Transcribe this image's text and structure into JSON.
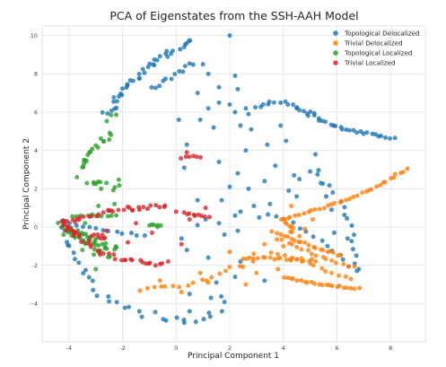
{
  "chart_data": {
    "type": "scatter",
    "title": "PCA of Eigenstates from the SSH-AAH Model",
    "xlabel": "Principal Component 1",
    "ylabel": "Principal Component 2",
    "xlim": [
      -5,
      9.3
    ],
    "ylim": [
      -6.0,
      10.5
    ],
    "xticks": [
      -4,
      -2,
      0,
      2,
      4,
      6,
      8
    ],
    "yticks": [
      -4,
      -2,
      0,
      2,
      4,
      6,
      8,
      10
    ],
    "grid": true,
    "legend_position": "top-right",
    "series": [
      {
        "name": "Topological Delocalized",
        "color": "#1f77b4"
      },
      {
        "name": "Trivial Delocalized",
        "color": "#ff7f0e"
      },
      {
        "name": "Topological Localized",
        "color": "#2ca02c"
      },
      {
        "name": "Trivial Localized",
        "color": "#d62728"
      }
    ],
    "curves": {
      "Topological Delocalized": [
        {
          "path": [
            [
              -2.6,
              5.9
            ],
            [
              -2.2,
              6.7
            ],
            [
              -1.5,
              7.8
            ],
            [
              -0.9,
              8.5
            ],
            [
              -0.3,
              9.1
            ],
            [
              0.3,
              9.5
            ],
            [
              0.6,
              9.7
            ]
          ],
          "n": 40,
          "jitter": 0.15
        },
        {
          "path": [
            [
              -0.8,
              7.2
            ],
            [
              -0.2,
              7.8
            ],
            [
              0.2,
              8.2
            ],
            [
              0.6,
              8.6
            ]
          ],
          "n": 12,
          "jitter": 0.12
        },
        {
          "path": [
            [
              -4.3,
              0.2
            ],
            [
              -3.6,
              -2.0
            ],
            [
              -2.8,
              -3.5
            ],
            [
              -2.0,
              -4.2
            ],
            [
              -1.0,
              -4.6
            ],
            [
              0.0,
              -4.8
            ],
            [
              1.0,
              -5.0
            ],
            [
              1.5,
              -4.4
            ],
            [
              1.8,
              -3.8
            ]
          ],
          "n": 35,
          "jitter": 0.18
        },
        {
          "path": [
            [
              3.0,
              6.2
            ],
            [
              3.5,
              6.5
            ],
            [
              4.0,
              6.5
            ],
            [
              4.5,
              6.3
            ],
            [
              5.0,
              5.8
            ]
          ],
          "n": 16,
          "jitter": 0.08
        },
        {
          "path": [
            [
              5.0,
              6.0
            ],
            [
              5.5,
              5.5
            ],
            [
              6.2,
              5.1
            ],
            [
              7.0,
              4.9
            ],
            [
              7.6,
              4.8
            ],
            [
              8.1,
              4.6
            ]
          ],
          "n": 26,
          "jitter": 0.07
        },
        {
          "path": [
            [
              5.2,
              3.0
            ],
            [
              5.8,
              2.0
            ],
            [
              6.2,
              1.0
            ],
            [
              6.5,
              0.0
            ],
            [
              6.6,
              -1.0
            ],
            [
              6.7,
              -2.2
            ]
          ],
          "n": 16,
          "jitter": 0.12
        },
        {
          "path": [
            [
              -4.0,
              0.2
            ],
            [
              -3.0,
              -0.1
            ],
            [
              -2.0,
              -0.3
            ],
            [
              -1.2,
              -0.45
            ]
          ],
          "n": 12,
          "jitter": 0.06
        },
        {
          "path": [
            [
              3.5,
              0.7
            ],
            [
              4.5,
              0.1
            ],
            [
              5.5,
              -0.8
            ],
            [
              6.2,
              -1.6
            ],
            [
              6.7,
              -2.3
            ]
          ],
          "n": 14,
          "jitter": 0.08
        }
      ],
      "Trivial Delocalized": [
        {
          "path": [
            [
              4.0,
              0.4
            ],
            [
              5.5,
              1.0
            ],
            [
              6.7,
              1.6
            ],
            [
              7.6,
              2.2
            ],
            [
              8.2,
              2.7
            ],
            [
              8.6,
              3.0
            ]
          ],
          "n": 34,
          "jitter": 0.06
        },
        {
          "path": [
            [
              3.6,
              -0.2
            ],
            [
              4.5,
              -0.7
            ],
            [
              5.5,
              -1.2
            ],
            [
              6.2,
              -1.5
            ]
          ],
          "n": 20,
          "jitter": 0.06
        },
        {
          "path": [
            [
              3.8,
              -0.6
            ],
            [
              4.8,
              -1.2
            ],
            [
              5.8,
              -1.8
            ],
            [
              6.6,
              -2.1
            ]
          ],
          "n": 16,
          "jitter": 0.06
        },
        {
          "path": [
            [
              2.5,
              -1.6
            ],
            [
              3.5,
              -1.65
            ],
            [
              4.5,
              -1.7
            ],
            [
              5.2,
              -1.75
            ]
          ],
          "n": 20,
          "jitter": 0.07
        },
        {
          "path": [
            [
              4.0,
              -2.6
            ],
            [
              5.0,
              -2.9
            ],
            [
              6.0,
              -3.1
            ],
            [
              6.8,
              -3.2
            ]
          ],
          "n": 22,
          "jitter": 0.05
        },
        {
          "path": [
            [
              3.6,
              -1.3
            ],
            [
              4.8,
              -1.8
            ],
            [
              5.8,
              -2.4
            ],
            [
              6.5,
              -2.7
            ]
          ],
          "n": 14,
          "jitter": 0.06
        },
        {
          "path": [
            [
              -1.4,
              -3.3
            ],
            [
              -0.4,
              -3.1
            ],
            [
              0.6,
              -3.0
            ],
            [
              1.4,
              -2.6
            ],
            [
              2.0,
              -2.2
            ],
            [
              2.8,
              -1.9
            ]
          ],
          "n": 18,
          "jitter": 0.1
        },
        {
          "path": [
            [
              4.0,
              0.5
            ],
            [
              4.2,
              0.0
            ],
            [
              4.5,
              -0.4
            ]
          ],
          "n": 10,
          "jitter": 0.12
        }
      ],
      "Topological Localized": [
        {
          "path": [
            [
              -4.3,
              0.1
            ],
            [
              -3.5,
              -0.5
            ],
            [
              -2.8,
              -0.9
            ],
            [
              -2.3,
              -1.2
            ]
          ],
          "n": 30,
          "jitter": 0.2
        },
        {
          "path": [
            [
              -4.1,
              0.0
            ],
            [
              -3.2,
              -1.0
            ],
            [
              -2.6,
              -1.6
            ]
          ],
          "n": 16,
          "jitter": 0.18
        },
        {
          "path": [
            [
              -3.9,
              0.6
            ],
            [
              -3.0,
              0.6
            ],
            [
              -2.2,
              0.6
            ]
          ],
          "n": 10,
          "jitter": 0.06
        },
        {
          "path": [
            [
              -3.6,
              3.0
            ],
            [
              -3.2,
              3.8
            ],
            [
              -2.8,
              4.4
            ],
            [
              -2.5,
              4.9
            ]
          ],
          "n": 18,
          "jitter": 0.14
        },
        {
          "path": [
            [
              -2.5,
              5.6
            ],
            [
              -2.3,
              5.9
            ]
          ],
          "n": 3,
          "jitter": 0.1
        },
        {
          "path": [
            [
              -3.2,
              2.2
            ],
            [
              -2.9,
              2.5
            ]
          ],
          "n": 6,
          "jitter": 0.15
        },
        {
          "path": [
            [
              -2.3,
              2.0
            ],
            [
              -2.1,
              2.4
            ]
          ],
          "n": 4,
          "jitter": 0.1
        },
        {
          "path": [
            [
              -1.0,
              0.1
            ],
            [
              -0.6,
              0.05
            ]
          ],
          "n": 5,
          "jitter": 0.04
        }
      ],
      "Trivial Localized": [
        {
          "path": [
            [
              -4.2,
              0.2
            ],
            [
              -3.2,
              0.6
            ],
            [
              -2.2,
              0.95
            ],
            [
              -1.2,
              1.0
            ],
            [
              -0.4,
              1.05
            ]
          ],
          "n": 32,
          "jitter": 0.12
        },
        {
          "path": [
            [
              -4.1,
              0.0
            ],
            [
              -3.0,
              -1.2
            ],
            [
              -2.0,
              -1.7
            ],
            [
              -1.0,
              -1.9
            ],
            [
              -0.5,
              -2.0
            ]
          ],
          "n": 32,
          "jitter": 0.12
        },
        {
          "path": [
            [
              -3.1,
              -0.4
            ],
            [
              -2.6,
              -0.6
            ]
          ],
          "n": 8,
          "jitter": 0.1
        },
        {
          "path": [
            [
              0.3,
              0.7
            ],
            [
              0.8,
              0.6
            ],
            [
              1.2,
              0.5
            ]
          ],
          "n": 9,
          "jitter": 0.06
        },
        {
          "path": [
            [
              0.2,
              3.6
            ],
            [
              0.6,
              3.7
            ],
            [
              0.9,
              3.6
            ]
          ],
          "n": 6,
          "jitter": 0.05
        },
        {
          "path": [
            [
              -4.3,
              0.3
            ],
            [
              -4.0,
              0.0
            ],
            [
              -3.8,
              -0.2
            ]
          ],
          "n": 8,
          "jitter": 0.1
        }
      ]
    },
    "points": {
      "Topological Delocalized": [
        [
          2.0,
          10.0
        ],
        [
          1.0,
          8.5
        ],
        [
          1.2,
          8.0
        ],
        [
          1.6,
          7.3
        ],
        [
          2.2,
          7.9
        ],
        [
          0.8,
          7.0
        ],
        [
          1.2,
          6.2
        ],
        [
          1.6,
          6.5
        ],
        [
          2.0,
          6.4
        ],
        [
          2.2,
          6.0
        ],
        [
          2.6,
          6.2
        ],
        [
          2.4,
          5.3
        ],
        [
          1.4,
          5.2
        ],
        [
          0.9,
          5.6
        ],
        [
          2.8,
          5.1
        ],
        [
          3.4,
          4.3
        ],
        [
          3.9,
          5.3
        ],
        [
          4.1,
          4.5
        ],
        [
          3.7,
          3.2
        ],
        [
          3.3,
          2.4
        ],
        [
          2.3,
          2.8
        ],
        [
          2.0,
          2.1
        ],
        [
          1.6,
          3.4
        ],
        [
          2.6,
          4.0
        ],
        [
          1.7,
          1.4
        ],
        [
          2.9,
          1.1
        ],
        [
          2.4,
          0.8
        ],
        [
          2.2,
          0.6
        ],
        [
          1.6,
          0.2
        ],
        [
          2.3,
          -0.2
        ],
        [
          3.1,
          0.5
        ],
        [
          5.0,
          2.9
        ],
        [
          4.2,
          1.9
        ],
        [
          5.4,
          2.3
        ],
        [
          5.6,
          1.6
        ],
        [
          5.8,
          0.9
        ],
        [
          4.6,
          2.5
        ],
        [
          2.3,
          7.2
        ],
        [
          2.7,
          5.9
        ],
        [
          0.2,
          -0.6
        ],
        [
          0.4,
          -1.2
        ],
        [
          0.8,
          0.1
        ],
        [
          1.1,
          0.4
        ],
        [
          0.5,
          -4.4
        ],
        [
          1.3,
          -3.7
        ],
        [
          2.2,
          -2.6
        ],
        [
          2.4,
          -1.8
        ],
        [
          3.3,
          -2.8
        ],
        [
          1.5,
          -2.9
        ],
        [
          0.8,
          1.4
        ],
        [
          0.3,
          3.1
        ],
        [
          1.8,
          -0.4
        ],
        [
          2.7,
          2.0
        ],
        [
          4.5,
          1.6
        ],
        [
          3.5,
          1.2
        ],
        [
          4.4,
          2.7
        ],
        [
          0.5,
          -3.5
        ],
        [
          1.2,
          -1.6
        ],
        [
          0.1,
          5.6
        ],
        [
          0.4,
          4.3
        ],
        [
          5.2,
          3.8
        ],
        [
          6.4,
          -0.6
        ],
        [
          5.9,
          -0.3
        ]
      ],
      "Trivial Delocalized": [
        [
          1.2,
          -2.9
        ],
        [
          0.9,
          -2.4
        ],
        [
          2.6,
          -3.0
        ],
        [
          3.8,
          -2.2
        ],
        [
          2.0,
          -1.3
        ],
        [
          3.3,
          -0.9
        ],
        [
          4.8,
          -0.1
        ],
        [
          4.3,
          1.1
        ],
        [
          3.0,
          -2.4
        ],
        [
          0.2,
          -3.4
        ],
        [
          -0.6,
          -2.8
        ],
        [
          5.1,
          0.4
        ],
        [
          4.0,
          -1.0
        ],
        [
          2.9,
          -1.4
        ]
      ],
      "Topological Localized": [
        [
          -2.9,
          1.1
        ],
        [
          -2.3,
          1.2
        ],
        [
          -3.7,
          2.6
        ],
        [
          -2.8,
          2.0
        ],
        [
          -3.4,
          0.2
        ],
        [
          -4.2,
          -0.4
        ],
        [
          -3.0,
          -2.2
        ],
        [
          -0.7,
          0.0
        ],
        [
          -2.6,
          2.3
        ],
        [
          -3.5,
          -1.2
        ]
      ],
      "Trivial Localized": [
        [
          0.0,
          0.8
        ],
        [
          1.1,
          1.0
        ],
        [
          0.5,
          0.4
        ],
        [
          -1.5,
          0.2
        ],
        [
          -0.9,
          -0.3
        ],
        [
          0.4,
          3.9
        ],
        [
          -0.3,
          -1.8
        ],
        [
          0.2,
          -0.9
        ],
        [
          -2.6,
          -0.2
        ],
        [
          -1.8,
          -0.8
        ]
      ]
    }
  }
}
